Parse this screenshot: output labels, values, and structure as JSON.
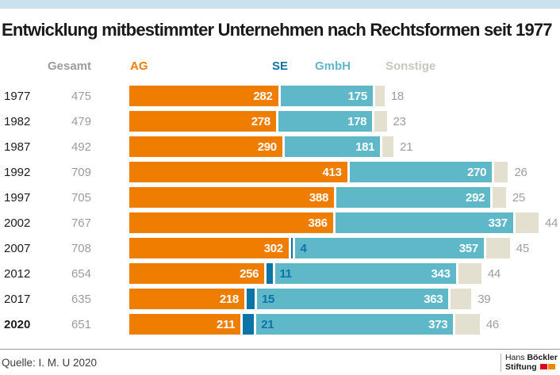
{
  "title": "Entwicklung mitbestimmter Unternehmen nach Rechtsformen seit 1977",
  "legend": {
    "gesamt": "Gesamt",
    "ag": "AG",
    "se": "SE",
    "gmbh": "GmbH",
    "sonstige": "Sonstige"
  },
  "colors": {
    "top_strip": "#CBE2EE",
    "ag": "#EE7D00",
    "se": "#0D74A8",
    "gmbh": "#5FB8C8",
    "sonstige": "#E4E0CF",
    "total_text": "#9C9C9C",
    "sonstige_value_text": "#9E9E9E",
    "sonstige_legend_text": "#C9C7BD",
    "year_text": "#1D1D1B",
    "bar_value_text": "#FFFFFF",
    "logo_red": "#E2001A",
    "logo_orange": "#F18700"
  },
  "chart_data": {
    "type": "bar",
    "orientation": "horizontal",
    "stacked": true,
    "title": "Entwicklung mitbestimmter Unternehmen nach Rechtsformen seit 1977",
    "categories": [
      "1977",
      "1982",
      "1987",
      "1992",
      "1997",
      "2002",
      "2007",
      "2012",
      "2017",
      "2020"
    ],
    "totals_label": "Gesamt",
    "totals": [
      475,
      479,
      492,
      709,
      705,
      767,
      708,
      654,
      635,
      651
    ],
    "series": [
      {
        "name": "AG",
        "values": [
          282,
          278,
          290,
          413,
          388,
          386,
          302,
          256,
          218,
          211
        ]
      },
      {
        "name": "SE",
        "values": [
          null,
          null,
          null,
          null,
          null,
          null,
          4,
          11,
          15,
          21
        ]
      },
      {
        "name": "GmbH",
        "values": [
          175,
          178,
          181,
          270,
          292,
          337,
          357,
          343,
          363,
          373
        ]
      },
      {
        "name": "Sonstige",
        "values": [
          18,
          23,
          21,
          26,
          25,
          44,
          45,
          44,
          39,
          46
        ]
      }
    ],
    "highlight_category": "2020",
    "legend_position": "top",
    "value_labels": "inside",
    "xlim": [
      0,
      810
    ]
  },
  "footer": {
    "source": "Quelle: I. M. U 2020",
    "logo": {
      "name_regular": "Hans",
      "name_bold": "Böckler",
      "line2_bold": "Stiftung"
    }
  }
}
